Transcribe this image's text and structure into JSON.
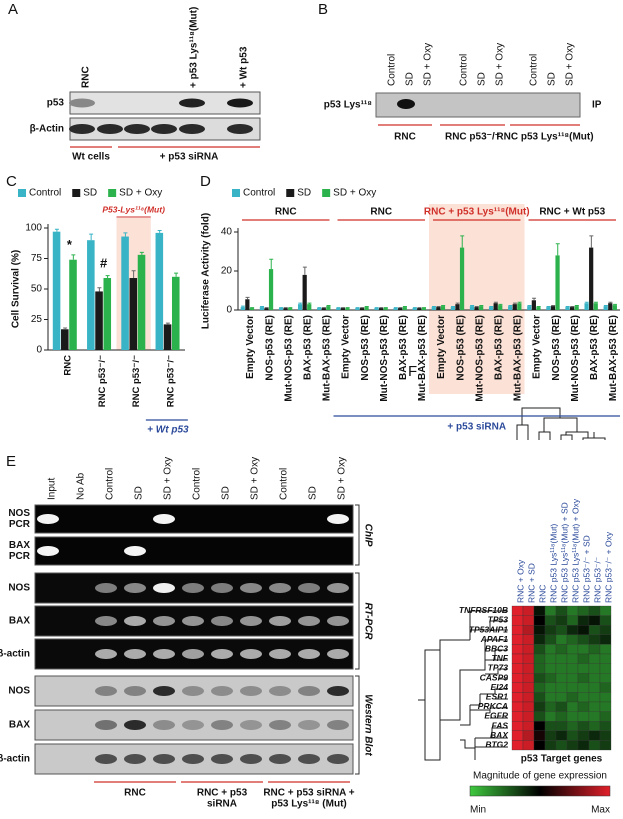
{
  "panel_labels": [
    "A",
    "B",
    "C",
    "D",
    "E",
    "F"
  ],
  "panel_a": {
    "columns": [
      "RNC",
      "+ p53 Lys¹¹⁸(Mut)",
      "+ Wt p53"
    ],
    "rows": [
      "p53",
      "β-Actin"
    ],
    "groups": [
      "Wt cells",
      "+ p53 siRNA"
    ]
  },
  "panel_b": {
    "columns": [
      "Control",
      "SD",
      "SD + Oxy",
      "Control",
      "SD",
      "SD + Oxy",
      "Control",
      "SD",
      "SD + Oxy"
    ],
    "row": "p53 Lys¹¹⁸",
    "side": "IP",
    "groups": [
      "RNC",
      "RNC p53⁻/⁻",
      "RNC p53 Lys¹¹⁸(Mut)"
    ]
  },
  "chart_data": [
    {
      "type": "bar",
      "ylabel": "Cell Survival (%)",
      "categories": [
        "RNC",
        "RNC p53⁻/⁻",
        "RNC p53⁻/⁻",
        "RNC p53⁻/⁻"
      ],
      "series": [
        {
          "name": "Control",
          "color": "#39b4c6",
          "values": [
            97,
            90,
            93,
            96
          ],
          "errors": [
            2,
            5,
            3,
            2
          ]
        },
        {
          "name": "SD",
          "color": "#1a1a1a",
          "values": [
            17,
            48,
            59,
            21
          ],
          "errors": [
            1,
            3,
            6,
            1
          ]
        },
        {
          "name": "SD + Oxy",
          "color": "#2bb24c",
          "values": [
            74,
            59,
            78,
            60
          ],
          "errors": [
            4,
            2,
            2,
            3
          ]
        }
      ],
      "ylim": [
        0,
        100
      ],
      "yticks": [
        0,
        25,
        50,
        75,
        100
      ],
      "annotations": [
        "*",
        "#"
      ],
      "highlight_label": "P53-Lys¹¹⁸(Mut)",
      "footnote": "+ Wt p53"
    },
    {
      "type": "bar",
      "ylabel": "Luciferase Activity (fold)",
      "groups": [
        "RNC",
        "RNC",
        "RNC + p53 Lys¹¹⁸(Mut)",
        "RNC + Wt p53"
      ],
      "categories": [
        "Empty Vector",
        "NOS-p53 (RE)",
        "Mut-NOS-p53 (RE)",
        "BAX-p53 (RE)",
        "Mut-BAX-p53 (RE)",
        "Empty Vector",
        "NOS-p53 (RE)",
        "Mut-NOS-p53 (RE)",
        "BAX-p53 (RE)",
        "Mut-BAX-p53 (RE)",
        "Empty Vector",
        "NOS-p53 (RE)",
        "Mut-NOS-p53 (RE)",
        "BAX-p53 (RE)",
        "Mut-BAX-p53 (RE)",
        "Empty Vector",
        "NOS-p53 (RE)",
        "Mut-NOS-p53 (RE)",
        "BAX-p53 (RE)",
        "Mut-BAX-p53 (RE)"
      ],
      "series": [
        {
          "name": "Control",
          "color": "#39b4c6",
          "values": [
            1.5,
            1.5,
            1,
            3,
            1,
            1,
            1,
            1,
            1,
            1,
            1.5,
            1.5,
            2,
            1.5,
            2,
            2,
            1.5,
            1.5,
            3.5,
            2
          ],
          "errors": [
            0.5,
            0.3,
            0.2,
            0.5,
            0.2,
            0.2,
            0.2,
            0.2,
            0.2,
            0.2,
            0.3,
            0.3,
            0.3,
            0.3,
            0.3,
            0.3,
            0.3,
            0.3,
            0.5,
            0.3
          ]
        },
        {
          "name": "SD",
          "color": "#1a1a1a",
          "values": [
            5.5,
            1,
            1,
            18,
            1,
            1,
            1,
            1,
            1,
            1,
            1.5,
            3,
            1.5,
            3.5,
            3,
            5,
            2,
            1.5,
            32,
            3.5
          ],
          "errors": [
            1,
            0.2,
            0.2,
            4,
            0.2,
            0.2,
            0.2,
            0.2,
            0.2,
            0.2,
            0.3,
            0.5,
            0.3,
            0.5,
            0.5,
            1,
            0.3,
            0.3,
            6,
            0.5
          ]
        },
        {
          "name": "SD + Oxy",
          "color": "#2bb24c",
          "values": [
            1,
            21,
            1,
            3,
            2,
            1,
            1.5,
            1,
            1.5,
            1,
            2,
            32,
            2,
            2.5,
            3.5,
            1.5,
            28,
            2,
            3.5,
            2.5
          ],
          "errors": [
            0.2,
            5,
            0.2,
            0.5,
            0.3,
            0.2,
            0.3,
            0.2,
            0.3,
            0.2,
            0.3,
            6,
            0.3,
            0.4,
            0.5,
            0.3,
            6,
            0.3,
            0.5,
            0.4
          ]
        }
      ],
      "ylim": [
        0,
        40
      ],
      "yticks": [
        0,
        20,
        40
      ],
      "footnote": "+ p53 siRNA"
    }
  ],
  "panel_e": {
    "columns": [
      "Input",
      "No Ab",
      "Control",
      "SD",
      "SD + Oxy",
      "Control",
      "SD",
      "SD + Oxy",
      "Control",
      "SD",
      "SD + Oxy"
    ],
    "row_labels": [
      [
        "NOS",
        "PCR"
      ],
      [
        "BAX",
        "PCR"
      ],
      [
        "NOS"
      ],
      [
        "BAX"
      ],
      [
        "β-actin"
      ],
      [
        "NOS"
      ],
      [
        "BAX"
      ],
      [
        "β-actin"
      ]
    ],
    "sections": [
      "ChIP",
      "RT-PCR",
      "Western Blot"
    ],
    "groups": [
      [
        "RNC"
      ],
      [
        "RNC +  p53",
        "siRNA"
      ],
      [
        "RNC + p53 siRNA +",
        "p53 Lys¹¹⁸ (Mut)"
      ]
    ]
  },
  "panel_f": {
    "columns": [
      "RNC + Oxy",
      "RNC + SD",
      "RNC",
      "RNC p53 Lys¹¹⁸(Mut)",
      "RNC p53 Lys¹¹⁸(Mut) + SD",
      "RNC p53 Lys¹¹⁸(Mut) + Oxy",
      "RNC p53⁻/⁻ + SD",
      "RNC p53⁻/⁻",
      "RNC p53⁻/⁻ + Oxy"
    ],
    "genes": [
      "TNFRSF10B",
      "TP53",
      "TP53AIP1",
      "APAF1",
      "BBC3",
      "TNF",
      "TP73",
      "CASP9",
      "EI24",
      "ESR1",
      "PRKCA",
      "EGFR",
      "FAS",
      "BAX",
      "BTG2"
    ],
    "values": [
      [
        1,
        0.95,
        0.45,
        0.2,
        0.3,
        0.2,
        0.25,
        0.3,
        0.2
      ],
      [
        1,
        0.95,
        0.5,
        0.3,
        0.35,
        0.25,
        0.4,
        0.45,
        0.3
      ],
      [
        1,
        0.9,
        0.45,
        0.35,
        0.3,
        0.4,
        0.45,
        0.3,
        0.35
      ],
      [
        1,
        0.95,
        0.4,
        0.3,
        0.2,
        0.25,
        0.3,
        0.35,
        0.4
      ],
      [
        1,
        0.95,
        0.3,
        0.2,
        0.25,
        0.2,
        0.2,
        0.25,
        0.2
      ],
      [
        1,
        0.95,
        0.25,
        0.2,
        0.2,
        0.2,
        0.25,
        0.2,
        0.2
      ],
      [
        1,
        0.95,
        0.25,
        0.2,
        0.2,
        0.2,
        0.2,
        0.2,
        0.2
      ],
      [
        1,
        0.95,
        0.3,
        0.25,
        0.2,
        0.2,
        0.25,
        0.2,
        0.2
      ],
      [
        1,
        0.95,
        0.25,
        0.2,
        0.2,
        0.2,
        0.2,
        0.2,
        0.25
      ],
      [
        1,
        0.95,
        0.3,
        0.2,
        0.2,
        0.25,
        0.2,
        0.2,
        0.2
      ],
      [
        1,
        0.95,
        0.35,
        0.25,
        0.3,
        0.2,
        0.25,
        0.2,
        0.2
      ],
      [
        1,
        0.95,
        0.3,
        0.2,
        0.25,
        0.2,
        0.2,
        0.2,
        0.25
      ],
      [
        1,
        0.95,
        0.5,
        0.3,
        0.3,
        0.25,
        0.3,
        0.25,
        0.3
      ],
      [
        1,
        0.9,
        0.55,
        0.35,
        0.4,
        0.3,
        0.35,
        0.4,
        0.35
      ],
      [
        1,
        0.95,
        0.5,
        0.35,
        0.3,
        0.35,
        0.4,
        0.3,
        0.35
      ]
    ],
    "xlabel": "p53 Target genes",
    "legend_title": "Magnitude of gene expression",
    "min_label": "Min",
    "max_label": "Max"
  }
}
